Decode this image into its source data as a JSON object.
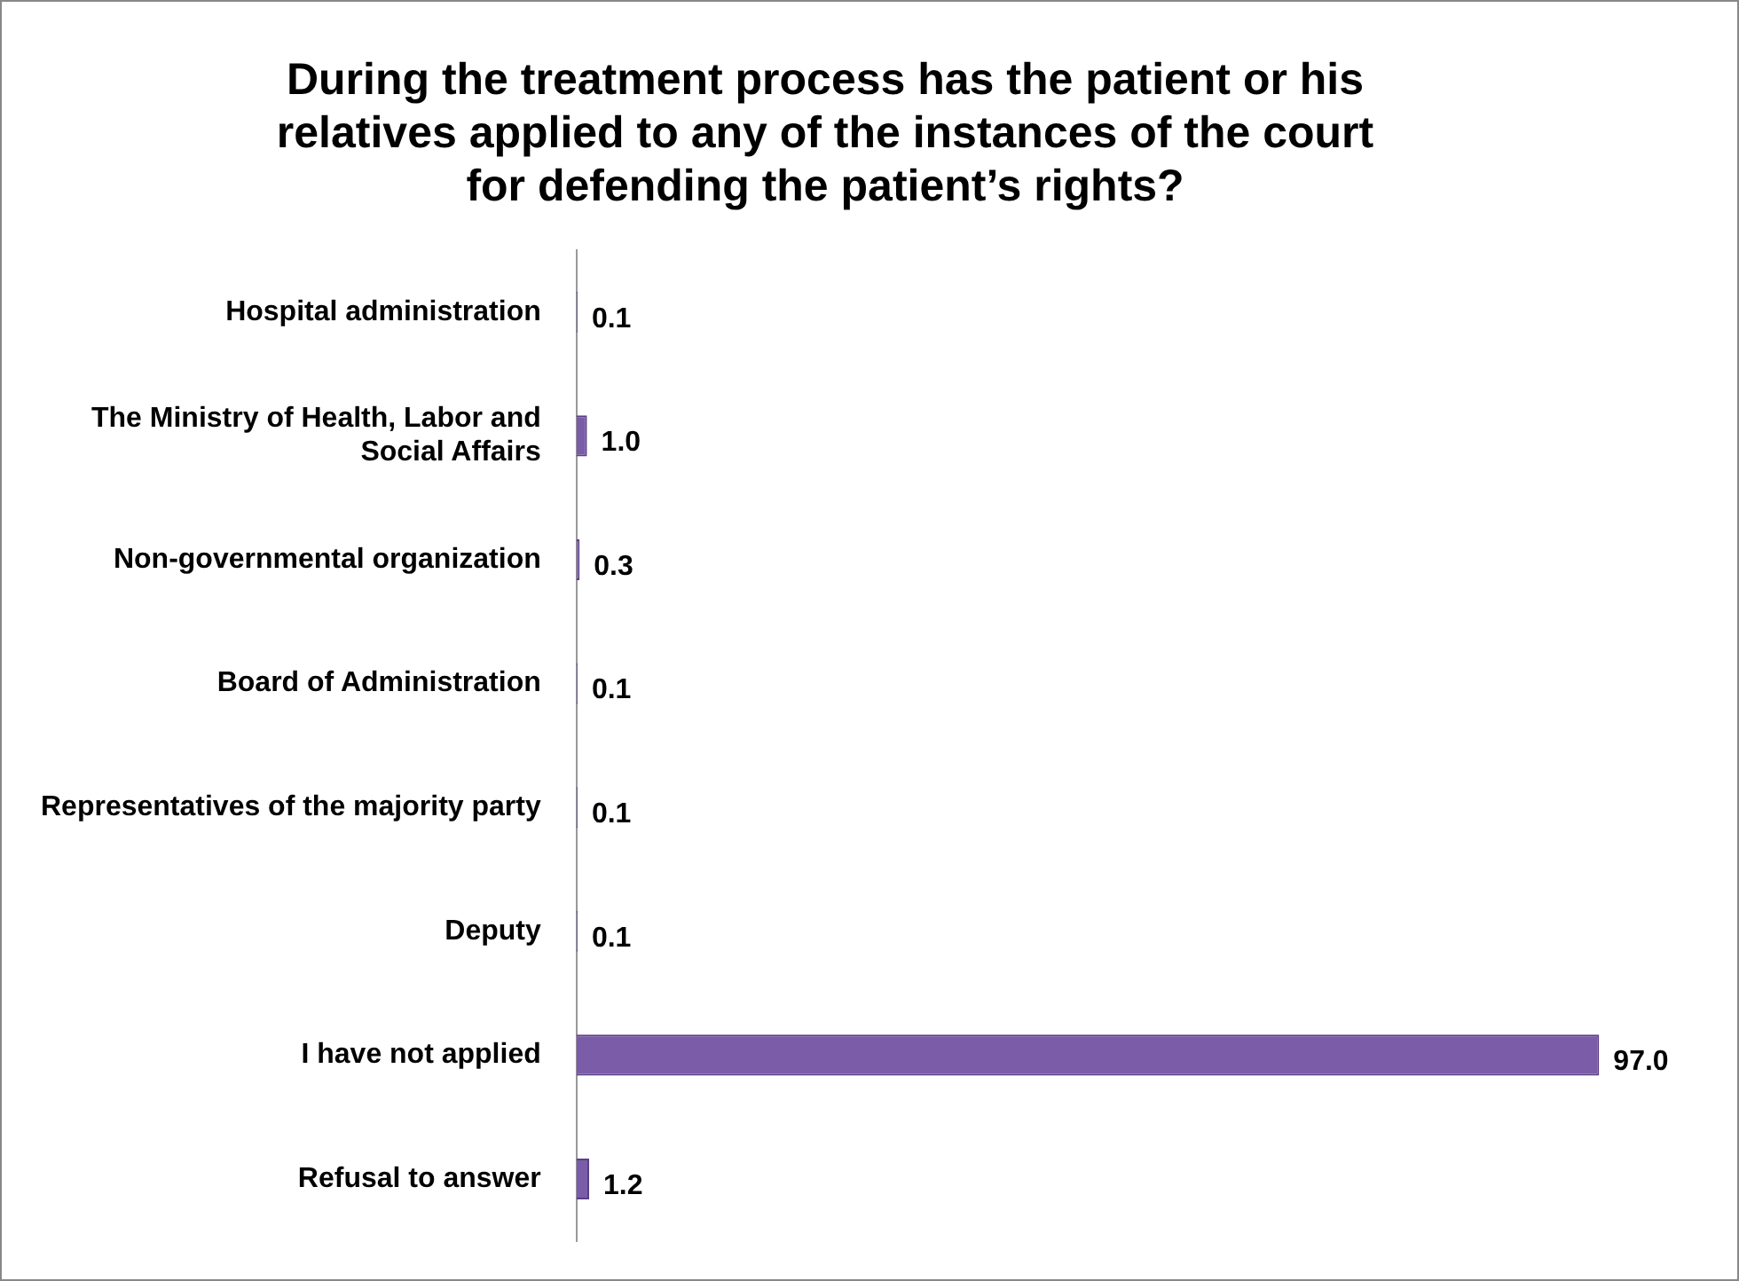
{
  "chart_data": {
    "type": "bar",
    "orientation": "horizontal",
    "title": "During the treatment process has the patient or his relatives applied to any of the instances of the court for defending the patient’s rights?",
    "categories": [
      "Hospital administration",
      "The Ministry of Health, Labor and Social Affairs",
      "Non-governmental organization",
      "Board of Administration",
      "Representatives of the majority party",
      "Deputy",
      "I have not applied",
      "Refusal to answer"
    ],
    "values": [
      0.1,
      1.0,
      0.3,
      0.1,
      0.1,
      0.1,
      97.0,
      1.2
    ],
    "value_labels": [
      "0.1",
      "1.0",
      "0.3",
      "0.1",
      "0.1",
      "0.1",
      "97.0",
      "1.2"
    ],
    "color": "#7a5ca8",
    "legend": false,
    "tick_labels": "y"
  }
}
